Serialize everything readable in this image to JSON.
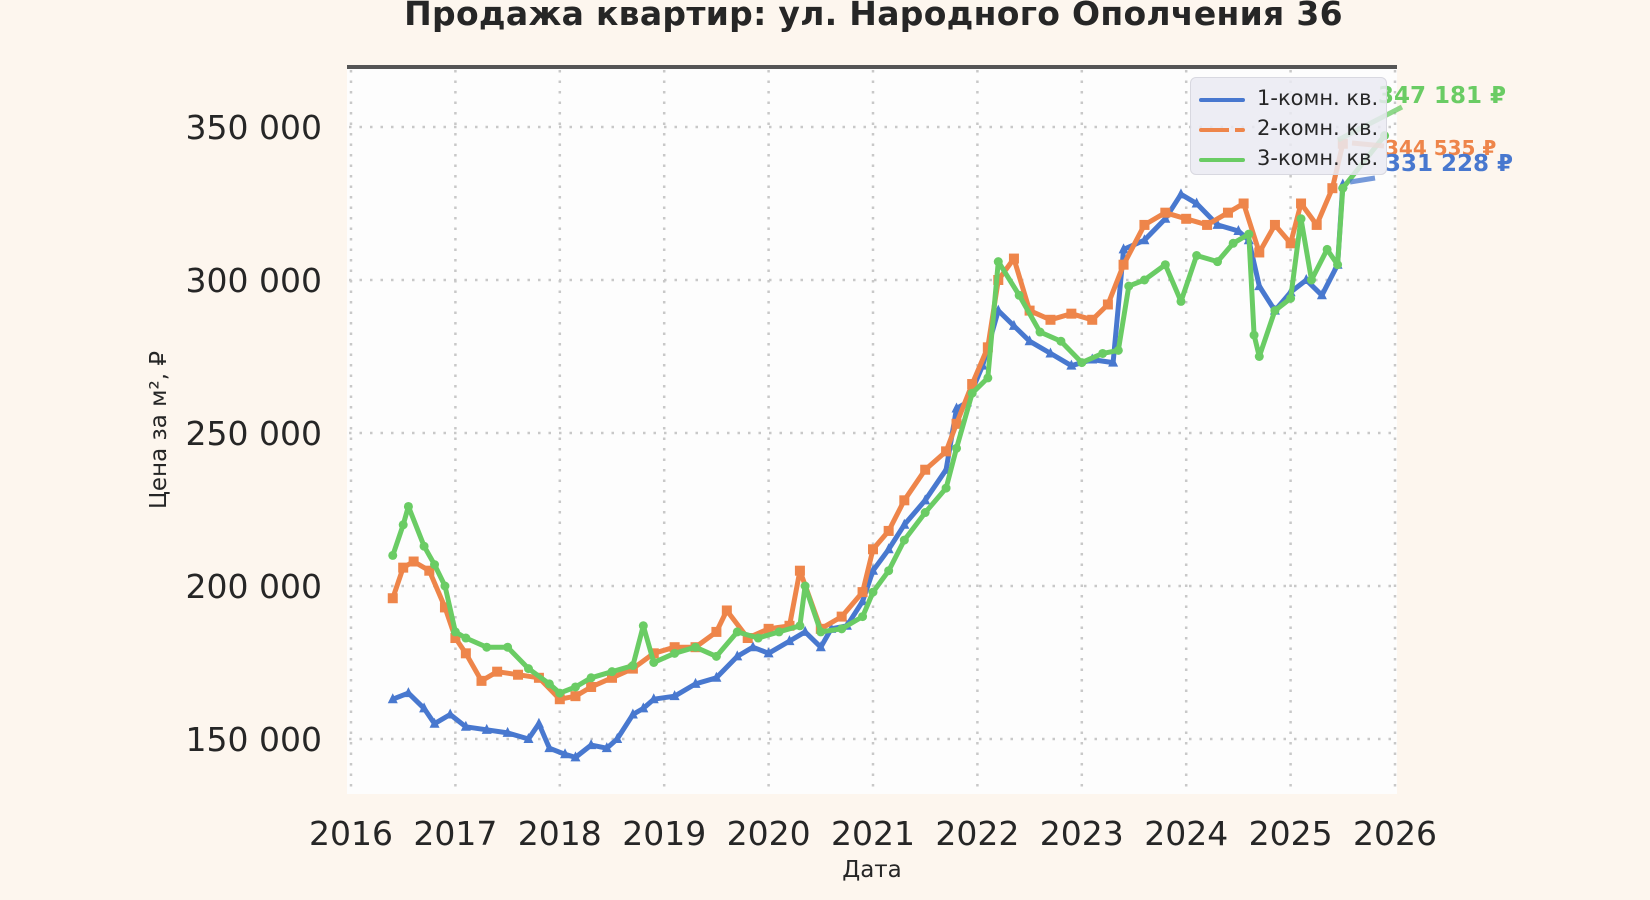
{
  "chart_data": {
    "type": "line",
    "title": "Продажа квартир: ул. Народного Ополчения 36",
    "xlabel": "Дата",
    "ylabel": "Цена за м², ₽",
    "x_ticks": [
      "2016",
      "2017",
      "2018",
      "2019",
      "2020",
      "2021",
      "2022",
      "2023",
      "2024",
      "2025",
      "2026"
    ],
    "y_ticks": [
      "150 000",
      "200 000",
      "250 000",
      "300 000",
      "350 000"
    ],
    "xlim": [
      2016.0,
      2026.0
    ],
    "ylim": [
      132000,
      372000
    ],
    "grid": true,
    "legend_position": "upper right",
    "series": [
      {
        "name": "1-комн. кв.",
        "color": "#4878cf",
        "marker": "triangle",
        "x": [
          2016.4,
          2016.55,
          2016.7,
          2016.8,
          2016.95,
          2017.1,
          2017.3,
          2017.5,
          2017.7,
          2017.8,
          2017.9,
          2018.05,
          2018.15,
          2018.3,
          2018.45,
          2018.55,
          2018.7,
          2018.8,
          2018.9,
          2019.1,
          2019.3,
          2019.5,
          2019.7,
          2019.85,
          2020.0,
          2020.2,
          2020.35,
          2020.5,
          2020.6,
          2020.75,
          2020.9,
          2021.0,
          2021.15,
          2021.3,
          2021.5,
          2021.7,
          2021.8,
          2021.9,
          2022.05,
          2022.2,
          2022.35,
          2022.5,
          2022.7,
          2022.9,
          2023.1,
          2023.3,
          2023.4,
          2023.6,
          2023.8,
          2023.95,
          2024.1,
          2024.3,
          2024.5,
          2024.6,
          2024.7,
          2024.85,
          2025.0,
          2025.15,
          2025.3,
          2025.45,
          2025.5
        ],
        "y": [
          163000,
          165000,
          160000,
          155000,
          158000,
          154000,
          153000,
          152000,
          150000,
          155000,
          147000,
          145000,
          144000,
          148000,
          147000,
          150000,
          158000,
          160000,
          163000,
          164000,
          168000,
          170000,
          177000,
          180000,
          178000,
          182000,
          185000,
          180000,
          186000,
          187000,
          195000,
          205000,
          212000,
          220000,
          228000,
          238000,
          258000,
          260000,
          272000,
          290000,
          285000,
          280000,
          276000,
          272000,
          274000,
          273000,
          310000,
          313000,
          320000,
          328000,
          325000,
          318000,
          316000,
          313000,
          298000,
          290000,
          296000,
          300000,
          295000,
          305000,
          331228
        ]
      },
      {
        "name": "2-комн. кв.",
        "color": "#ee854a",
        "marker": "square",
        "x": [
          2016.4,
          2016.5,
          2016.6,
          2016.75,
          2016.9,
          2017.0,
          2017.1,
          2017.25,
          2017.4,
          2017.6,
          2017.8,
          2018.0,
          2018.15,
          2018.3,
          2018.5,
          2018.7,
          2018.9,
          2019.1,
          2019.3,
          2019.5,
          2019.6,
          2019.8,
          2020.0,
          2020.2,
          2020.3,
          2020.5,
          2020.7,
          2020.9,
          2021.0,
          2021.15,
          2021.3,
          2021.5,
          2021.7,
          2021.8,
          2021.95,
          2022.1,
          2022.2,
          2022.35,
          2022.5,
          2022.7,
          2022.9,
          2023.1,
          2023.25,
          2023.4,
          2023.6,
          2023.8,
          2024.0,
          2024.2,
          2024.4,
          2024.55,
          2024.7,
          2024.85,
          2025.0,
          2025.1,
          2025.25,
          2025.4,
          2025.5
        ],
        "y": [
          196000,
          206000,
          208000,
          205000,
          193000,
          183000,
          178000,
          169000,
          172000,
          171000,
          170000,
          163000,
          164000,
          167000,
          170000,
          173000,
          178000,
          180000,
          180000,
          185000,
          192000,
          183000,
          186000,
          187000,
          205000,
          186000,
          190000,
          198000,
          212000,
          218000,
          228000,
          238000,
          244000,
          253000,
          266000,
          278000,
          300000,
          307000,
          290000,
          287000,
          289000,
          287000,
          292000,
          305000,
          318000,
          322000,
          320000,
          318000,
          322000,
          325000,
          309000,
          318000,
          312000,
          325000,
          318000,
          330000,
          344535
        ]
      },
      {
        "name": "3-комн. кв.",
        "color": "#6acc64",
        "marker": "circle",
        "x": [
          2016.4,
          2016.5,
          2016.55,
          2016.7,
          2016.8,
          2016.9,
          2017.0,
          2017.1,
          2017.3,
          2017.5,
          2017.7,
          2017.9,
          2018.0,
          2018.15,
          2018.3,
          2018.5,
          2018.7,
          2018.8,
          2018.9,
          2019.1,
          2019.3,
          2019.5,
          2019.7,
          2019.9,
          2020.1,
          2020.3,
          2020.35,
          2020.5,
          2020.7,
          2020.9,
          2021.0,
          2021.15,
          2021.3,
          2021.5,
          2021.7,
          2021.8,
          2021.95,
          2022.1,
          2022.2,
          2022.4,
          2022.6,
          2022.8,
          2023.0,
          2023.2,
          2023.35,
          2023.45,
          2023.6,
          2023.8,
          2023.95,
          2024.1,
          2024.3,
          2024.45,
          2024.6,
          2024.65,
          2024.7,
          2024.85,
          2025.0,
          2025.1,
          2025.2,
          2025.35,
          2025.45,
          2025.5,
          2025.9
        ],
        "y": [
          210000,
          220000,
          226000,
          213000,
          207000,
          200000,
          185000,
          183000,
          180000,
          180000,
          173000,
          168000,
          165000,
          167000,
          170000,
          172000,
          174000,
          187000,
          175000,
          178000,
          180000,
          177000,
          185000,
          183000,
          185000,
          187000,
          200000,
          185000,
          186000,
          190000,
          198000,
          205000,
          215000,
          224000,
          232000,
          245000,
          263000,
          268000,
          306000,
          295000,
          283000,
          280000,
          273000,
          276000,
          277000,
          298000,
          300000,
          305000,
          293000,
          308000,
          306000,
          312000,
          315000,
          282000,
          275000,
          290000,
          294000,
          320000,
          300000,
          310000,
          305000,
          330000,
          347181
        ]
      }
    ],
    "annotations": [
      {
        "text": "347 181 ₽",
        "series": "3-комн. кв.",
        "color": "#6acc64"
      },
      {
        "text": "344 535 ₽",
        "series": "2-комн. кв.",
        "color": "#ee854a"
      },
      {
        "text": "331 228 ₽",
        "series": "1-комн. кв.",
        "color": "#4878cf"
      }
    ]
  },
  "legend": {
    "items": [
      {
        "label": "1-комн. кв.",
        "color": "#4878cf"
      },
      {
        "label": "2-комн. кв.",
        "color": "#ee854a"
      },
      {
        "label": "3-комн. кв.",
        "color": "#6acc64"
      }
    ]
  }
}
